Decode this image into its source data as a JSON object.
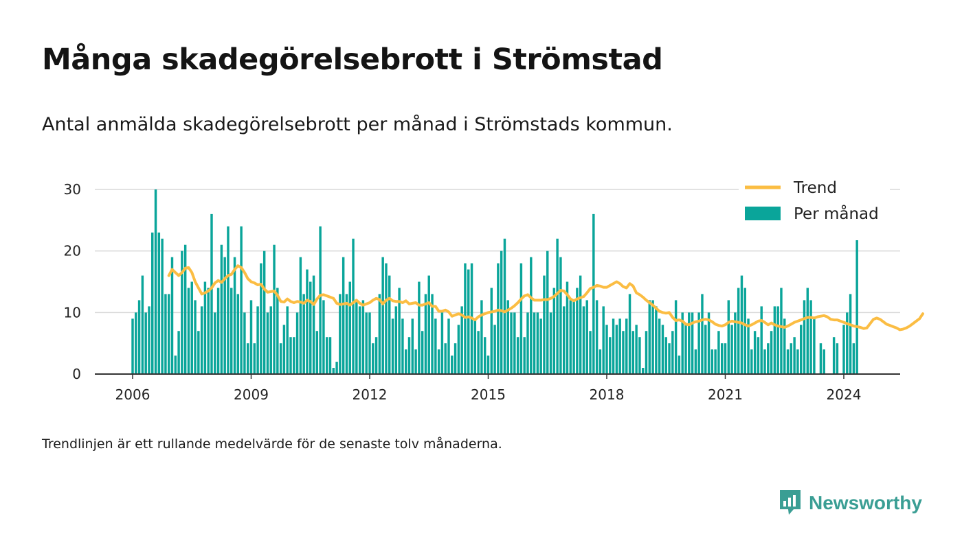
{
  "title": "Många skadegörelsebrott i Strömstad",
  "subtitle": "Antal anmälda skadegörelsebrott per månad i Strömstads kommun.",
  "footnote": "Trendlinjen är ett rullande medelvärde för de senaste tolv månaderna.",
  "brand": {
    "name": "Newsworthy",
    "icon": "newsworthy-logo-icon"
  },
  "colors": {
    "bars": "#0aa59a",
    "trend": "#fbbd43",
    "grid": "#d9d9d9",
    "axis": "#333333",
    "brand": "#3a9e94"
  },
  "chart_data": {
    "type": "bar",
    "title": "Många skadegörelsebrott i Strömstad",
    "xlabel": "",
    "ylabel": "",
    "ylim": [
      0,
      30
    ],
    "yticks": [
      0,
      10,
      20,
      30
    ],
    "xticks": [
      "2006",
      "2009",
      "2012",
      "2015",
      "2018",
      "2021",
      "2024"
    ],
    "x_start": "2006-01",
    "legend": {
      "position": "top-right",
      "entries": [
        "Trend",
        "Per månad"
      ]
    },
    "grid": true,
    "series": [
      {
        "name": "Per månad",
        "type": "bar",
        "values": [
          9,
          10,
          12,
          16,
          10,
          11,
          23,
          30,
          23,
          22,
          13,
          13,
          19,
          3,
          7,
          20,
          21,
          14,
          15,
          12,
          7,
          11,
          15,
          14,
          26,
          10,
          14,
          21,
          19,
          24,
          14,
          19,
          13,
          24,
          10,
          5,
          12,
          5,
          11,
          18,
          20,
          10,
          11,
          21,
          14,
          5,
          8,
          11,
          6,
          6,
          10,
          19,
          13,
          17,
          15,
          16,
          7,
          24,
          12,
          6,
          6,
          1,
          2,
          13,
          19,
          13,
          15,
          22,
          12,
          11,
          12,
          10,
          10,
          5,
          6,
          13,
          19,
          18,
          16,
          9,
          11,
          14,
          9,
          4,
          6,
          9,
          4,
          15,
          7,
          13,
          16,
          13,
          9,
          4,
          10,
          5,
          9,
          3,
          5,
          8,
          11,
          18,
          17,
          18,
          9,
          7,
          12,
          6,
          3,
          14,
          8,
          18,
          20,
          22,
          12,
          10,
          10,
          6,
          18,
          6,
          10,
          19,
          10,
          10,
          9,
          16,
          20,
          10,
          14,
          22,
          19,
          11,
          15,
          12,
          12,
          14,
          16,
          11,
          12,
          7,
          26,
          12,
          4,
          11,
          8,
          6,
          9,
          8,
          9,
          7,
          9,
          13,
          7,
          8,
          6,
          1,
          7,
          12,
          12,
          11,
          9,
          8,
          6,
          5,
          7,
          12,
          3,
          10,
          8,
          10,
          10,
          4,
          10,
          13,
          8,
          10,
          4,
          4,
          7,
          5,
          5,
          12,
          8,
          10,
          14,
          16,
          14,
          9,
          4,
          7,
          6,
          11,
          4,
          5,
          7,
          11,
          11,
          14,
          9,
          4,
          5,
          6,
          4,
          8,
          12,
          14,
          12,
          9,
          0,
          5,
          4,
          0,
          0,
          6,
          5,
          0,
          8,
          10,
          13,
          5,
          22
        ]
      },
      {
        "name": "Trend",
        "type": "line",
        "start_index": 11,
        "values": [
          16,
          17,
          16.5,
          16,
          16.5,
          17.2,
          17.3,
          16.5,
          15,
          14,
          13,
          13.2,
          13.5,
          14,
          14.8,
          15.2,
          14.9,
          15.5,
          16,
          16.2,
          17,
          17.6,
          17.3,
          16.5,
          15.5,
          15,
          14.8,
          14.5,
          14.6,
          13.8,
          13.3,
          13.4,
          13.5,
          12.8,
          11.8,
          11.7,
          12.2,
          11.8,
          11.6,
          11.8,
          11.7,
          11.5,
          12,
          11.8,
          11.3,
          12.2,
          12.8,
          12.9,
          12.7,
          12.5,
          12.3,
          11.5,
          11.3,
          11.4,
          11.5,
          11.2,
          11.6,
          12,
          11.5,
          11.2,
          11.4,
          11.6,
          12,
          12.3,
          12.1,
          11.4,
          12,
          12.3,
          11.9,
          11.8,
          11.8,
          11.6,
          11.9,
          11.4,
          11.5,
          11.6,
          11.2,
          11.2,
          11.4,
          11.6,
          11,
          11,
          10.2,
          10.2,
          10.4,
          10.1,
          9.4,
          9.6,
          9.8,
          9.6,
          9.2,
          9.3,
          9.1,
          8.8,
          9.3,
          9.6,
          9.8,
          10,
          10.1,
          10.2,
          10.4,
          10.3,
          10.1,
          10.4,
          10.7,
          11.1,
          11.6,
          12.2,
          12.7,
          12.9,
          12.4,
          12,
          12,
          12,
          12.1,
          12.1,
          12.3,
          12.6,
          13.1,
          13.6,
          13.5,
          12.9,
          12.2,
          11.9,
          12.2,
          12.4,
          12.6,
          13.2,
          13.9,
          14.1,
          14.4,
          14.3,
          14.1,
          14.1,
          14.4,
          14.7,
          15,
          14.7,
          14.2,
          14,
          14.7,
          14.3,
          13.2,
          12.9,
          12.5,
          12,
          11.6,
          11.2,
          10.7,
          10.2,
          10,
          9.9,
          10,
          9.2,
          8.7,
          8.8,
          8.6,
          8.1,
          8,
          8.3,
          8.5,
          8.6,
          8.8,
          8.9,
          8.8,
          8.5,
          8.1,
          7.9,
          7.8,
          8,
          8.4,
          8.6,
          8.5,
          8.4,
          8.3,
          8,
          7.8,
          8,
          8.3,
          8.6,
          8.7,
          8.4,
          8,
          8.3,
          8,
          7.8,
          7.7,
          7.6,
          7.8,
          8.1,
          8.4,
          8.6,
          8.8,
          9,
          9.2,
          9.2,
          9.1,
          9.3,
          9.4,
          9.5,
          9.3,
          8.9,
          8.8,
          8.8,
          8.6,
          8.4,
          8.2,
          8,
          7.8,
          7.7,
          7.6,
          7.4,
          7.5,
          8.2,
          8.9,
          9.1,
          8.9,
          8.5,
          8.1,
          7.9,
          7.7,
          7.5,
          7.2,
          7.3,
          7.5,
          7.8,
          8.2,
          8.6,
          9,
          9.8
        ]
      }
    ]
  }
}
